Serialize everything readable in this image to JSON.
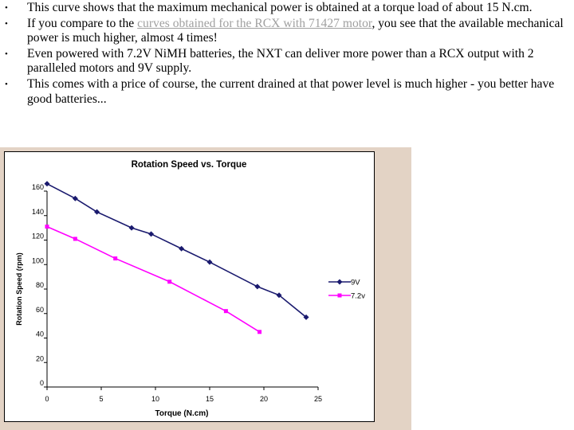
{
  "bullets": [
    {
      "text": "This curve shows that the maximum mechanical power is obtained at a torque load of about 15 N.cm."
    },
    {
      "before": "If you compare to the ",
      "link": "curves obtained for the RCX with 71427 motor",
      "after": ", you see that the available mechanical power is much higher, almost 4 times!"
    },
    {
      "text": "Even powered with 7.2V NiMH batteries, the NXT can deliver more power than a RCX output with 2 paralleled motors and 9V supply."
    },
    {
      "text": "This comes with a price of course, the current drained at that power level is much higher - you better have good batteries..."
    }
  ],
  "bullet_glyph": "•",
  "colors": {
    "slide_bg": "#e3d3c5",
    "series_9v": "#1a1a6e",
    "series_72v": "#ff00ff",
    "link": "#a0a0a0"
  },
  "chart_data": {
    "type": "line",
    "title": "Rotation Speed vs. Torque",
    "xlabel": "Torque (N.cm)",
    "ylabel": "Rotation Speed (rpm)",
    "xlim": [
      0,
      25
    ],
    "ylim": [
      0,
      160
    ],
    "xticks": [
      "0",
      "5",
      "10",
      "15",
      "20",
      "25"
    ],
    "yticks": [
      "0",
      "20",
      "40",
      "60",
      "80",
      "100",
      "120",
      "140",
      "160"
    ],
    "grid": false,
    "legend": "right",
    "series": [
      {
        "name": "9V",
        "color": "#1a1a6e",
        "marker": "diamond",
        "points": [
          [
            0,
            166
          ],
          [
            2.6,
            154
          ],
          [
            4.6,
            143
          ],
          [
            7.8,
            130
          ],
          [
            9.6,
            125
          ],
          [
            12.4,
            113
          ],
          [
            15,
            102
          ],
          [
            19.4,
            82
          ],
          [
            21.4,
            75
          ],
          [
            23.9,
            57
          ]
        ]
      },
      {
        "name": "7.2v",
        "color": "#ff00ff",
        "marker": "square",
        "points": [
          [
            0,
            131
          ],
          [
            2.6,
            121
          ],
          [
            6.3,
            105
          ],
          [
            11.3,
            86
          ],
          [
            16.5,
            62
          ],
          [
            19.6,
            45
          ]
        ]
      }
    ]
  }
}
